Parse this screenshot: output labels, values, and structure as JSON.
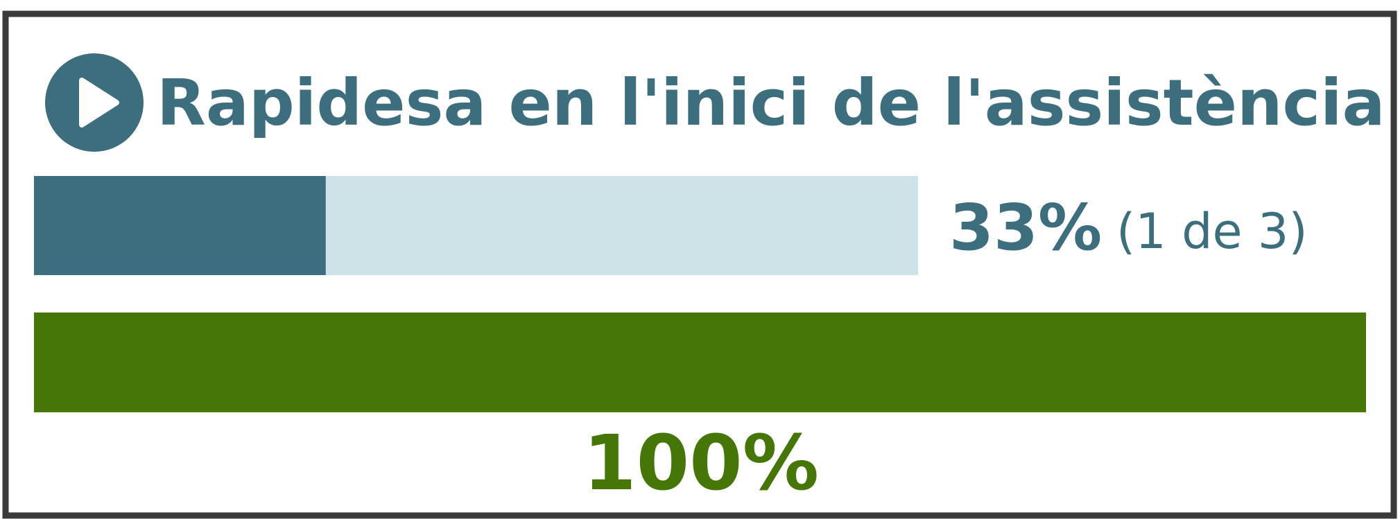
{
  "chart_data": {
    "type": "progress",
    "title": "Rapidesa en l'inici de l'assistència",
    "xlim": [
      0,
      100
    ],
    "values": [
      33,
      100
    ],
    "value_labels": [
      "33%",
      "100%"
    ],
    "detail": "(1 de 3)",
    "colors": [
      "#3d6e7e",
      "#467508"
    ],
    "track_color": "#cde3e8"
  }
}
